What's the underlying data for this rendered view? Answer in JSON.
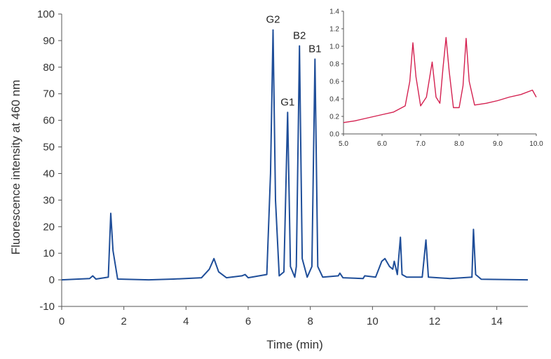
{
  "chart_data": [
    {
      "type": "line",
      "xlabel": "Time (min)",
      "ylabel": "Fluorescence intensity at 460 nm",
      "xlim": [
        0,
        15
      ],
      "ylim": [
        -10,
        100
      ],
      "x_ticks": [
        "0",
        "2",
        "4",
        "6",
        "8",
        "10",
        "12",
        "14"
      ],
      "y_ticks": [
        "-10",
        "0",
        "10",
        "20",
        "30",
        "40",
        "50",
        "60",
        "70",
        "80",
        "90",
        "100"
      ],
      "grid": false,
      "legend": "none",
      "series": [
        {
          "color": "#1f4e99",
          "x": [
            0,
            0.9,
            1.0,
            1.1,
            1.5,
            1.58,
            1.65,
            1.8,
            2.8,
            3.6,
            4.5,
            4.75,
            4.9,
            5.05,
            5.3,
            5.8,
            5.9,
            6.0,
            6.6,
            6.72,
            6.8,
            6.88,
            7.0,
            7.15,
            7.27,
            7.36,
            7.5,
            7.55,
            7.65,
            7.74,
            7.9,
            8.05,
            8.15,
            8.24,
            8.4,
            8.9,
            8.95,
            9.05,
            9.7,
            9.75,
            10.1,
            10.3,
            10.4,
            10.55,
            10.65,
            10.7,
            10.8,
            10.9,
            10.95,
            11.1,
            11.6,
            11.72,
            11.8,
            12.5,
            13.2,
            13.25,
            13.32,
            13.5,
            15
          ],
          "values": [
            0,
            0.5,
            1.5,
            0.3,
            1.0,
            25,
            11,
            0.3,
            0,
            0.3,
            0.8,
            4,
            8,
            3,
            0.8,
            1.5,
            2,
            0.8,
            2,
            40,
            94,
            30,
            1.5,
            3,
            63,
            5,
            1,
            5,
            88,
            8,
            1,
            5,
            83,
            5,
            1,
            1.5,
            2.5,
            0.8,
            0.5,
            1.5,
            1,
            7,
            8,
            5,
            4,
            7,
            2,
            16,
            2,
            1,
            1,
            15,
            1,
            0.5,
            1,
            19,
            2,
            0.2,
            0
          ]
        }
      ],
      "annotations": [
        {
          "text": "G2",
          "x": 6.8,
          "y": 94
        },
        {
          "text": "G1",
          "x": 7.27,
          "y": 63
        },
        {
          "text": "B2",
          "x": 7.65,
          "y": 88
        },
        {
          "text": "B1",
          "x": 8.15,
          "y": 83
        }
      ]
    },
    {
      "type": "line",
      "xlim": [
        5.0,
        10.0
      ],
      "ylim": [
        0.0,
        1.4
      ],
      "x_ticks": [
        "5.0",
        "6.0",
        "7.0",
        "8.0",
        "9.0",
        "10.0"
      ],
      "y_ticks": [
        "0.0",
        "0.2",
        "0.4",
        "0.6",
        "0.8",
        "1.0",
        "1.2",
        "1.4"
      ],
      "grid": false,
      "series": [
        {
          "color": "#d42150",
          "x": [
            5.0,
            5.3,
            5.6,
            6.0,
            6.3,
            6.6,
            6.72,
            6.8,
            6.88,
            7.0,
            7.15,
            7.3,
            7.4,
            7.5,
            7.58,
            7.66,
            7.74,
            7.85,
            8.0,
            8.1,
            8.18,
            8.26,
            8.4,
            8.7,
            9.0,
            9.3,
            9.6,
            9.9,
            10.0
          ],
          "values": [
            0.13,
            0.15,
            0.18,
            0.22,
            0.25,
            0.32,
            0.6,
            1.04,
            0.65,
            0.32,
            0.42,
            0.82,
            0.42,
            0.35,
            0.75,
            1.1,
            0.72,
            0.3,
            0.3,
            0.55,
            1.09,
            0.6,
            0.33,
            0.35,
            0.38,
            0.42,
            0.45,
            0.5,
            0.42
          ]
        }
      ]
    }
  ]
}
